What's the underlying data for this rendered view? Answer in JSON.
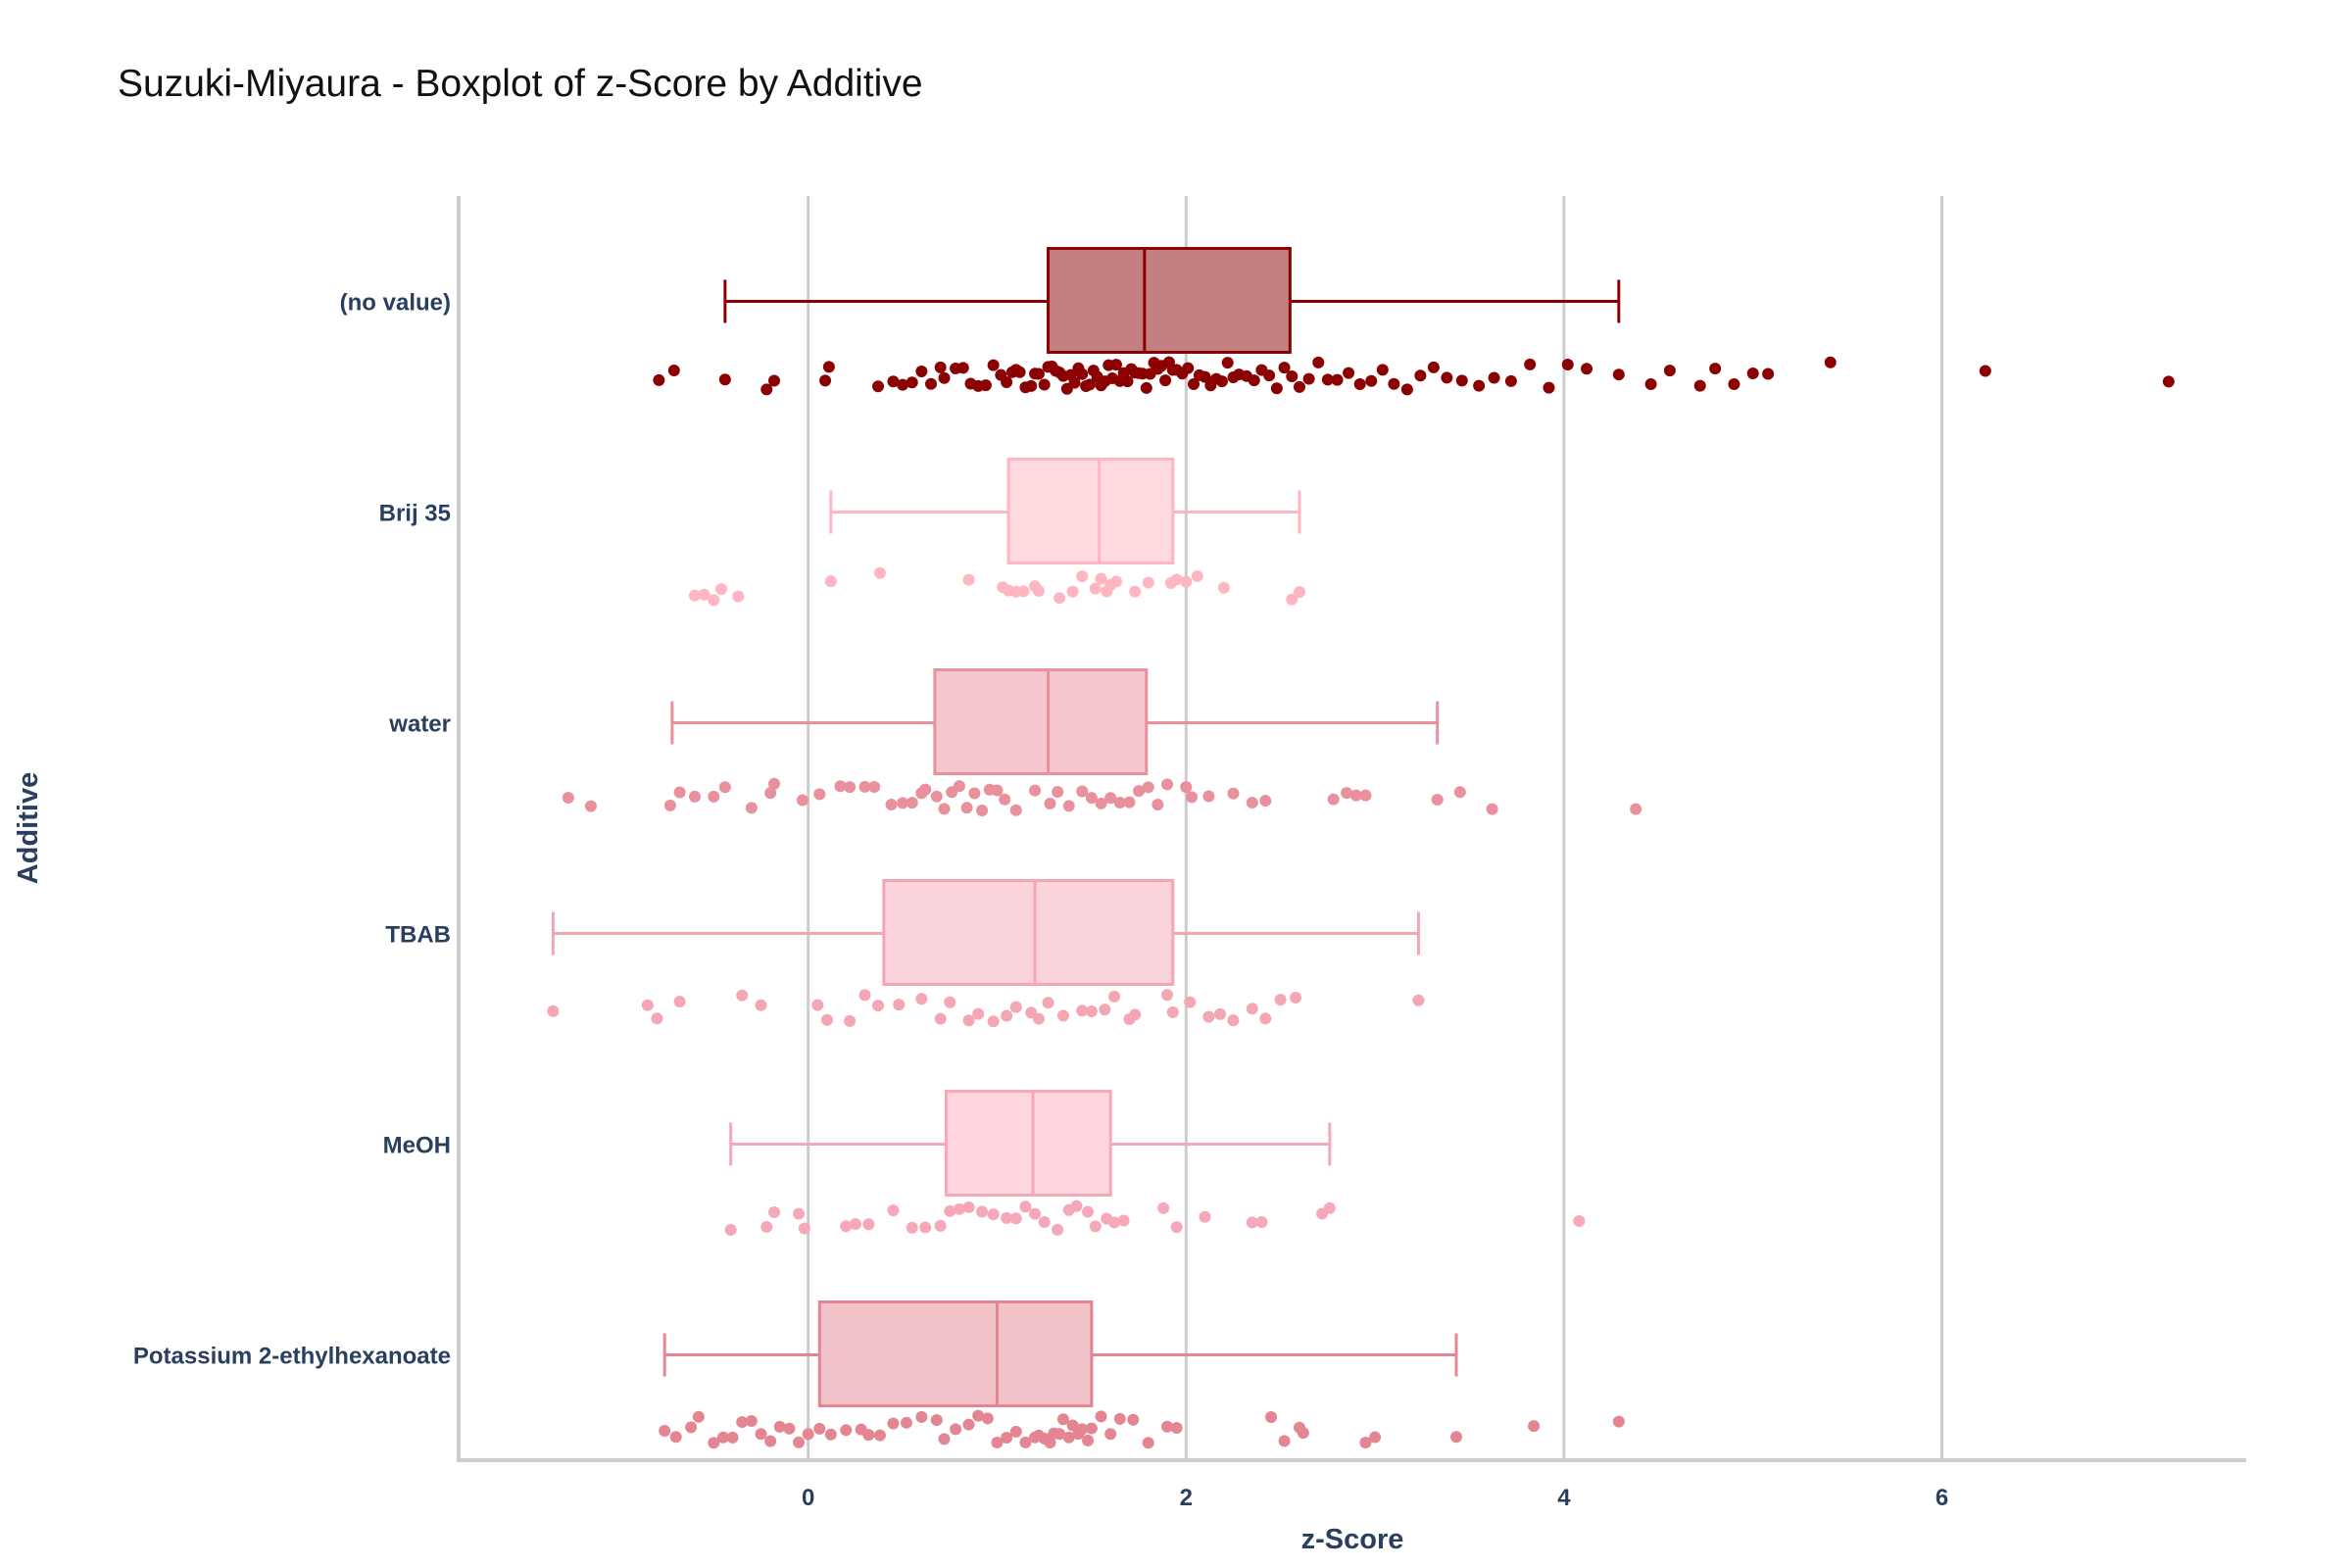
{
  "chart_data": {
    "type": "box",
    "orientation": "horizontal",
    "title": "Suzuki-Miyaura - Boxplot of z-Score by Additive",
    "xlabel": "z-Score",
    "ylabel": "Additive",
    "xlim": [
      -1.85,
      7.6
    ],
    "xticks": [
      0,
      2,
      4,
      6
    ],
    "grid": true,
    "legend": "none",
    "categories": [
      "(no value)",
      "Brij 35",
      "water",
      "TBAB",
      "MeOH",
      "Potassium 2-ethylhexanoate"
    ],
    "series": [
      {
        "category": "(no value)",
        "color": "#8b0000",
        "fill": "#c48080",
        "stats": {
          "lower_fence": -0.44,
          "q1": 1.27,
          "median": 1.78,
          "q3": 2.55,
          "upper_fence": 4.29
        },
        "points": [
          -0.79,
          -0.71,
          -0.44,
          -0.22,
          -0.18,
          0.09,
          0.11,
          0.37,
          0.45,
          0.5,
          0.55,
          0.6,
          0.65,
          0.7,
          0.72,
          0.78,
          0.82,
          0.86,
          0.9,
          0.94,
          0.98,
          1.02,
          1.05,
          1.08,
          1.1,
          1.12,
          1.15,
          1.18,
          1.2,
          1.22,
          1.25,
          1.27,
          1.29,
          1.31,
          1.33,
          1.35,
          1.37,
          1.39,
          1.41,
          1.43,
          1.45,
          1.47,
          1.49,
          1.51,
          1.53,
          1.55,
          1.57,
          1.59,
          1.61,
          1.63,
          1.65,
          1.67,
          1.69,
          1.71,
          1.73,
          1.75,
          1.77,
          1.79,
          1.81,
          1.83,
          1.85,
          1.87,
          1.89,
          1.91,
          1.93,
          1.95,
          1.98,
          2.01,
          2.04,
          2.07,
          2.1,
          2.13,
          2.16,
          2.19,
          2.22,
          2.25,
          2.28,
          2.32,
          2.36,
          2.4,
          2.44,
          2.48,
          2.52,
          2.56,
          2.6,
          2.65,
          2.7,
          2.75,
          2.8,
          2.86,
          2.92,
          2.98,
          3.04,
          3.1,
          3.17,
          3.24,
          3.31,
          3.38,
          3.46,
          3.55,
          3.63,
          3.72,
          3.82,
          3.92,
          4.02,
          4.12,
          4.29,
          4.46,
          4.56,
          4.72,
          4.8,
          4.9,
          5.0,
          5.08,
          5.41,
          6.23,
          7.2
        ]
      },
      {
        "category": "Brij 35",
        "color": "#ffb6c1",
        "fill": "#ffdbe0",
        "stats": {
          "lower_fence": 0.12,
          "q1": 1.06,
          "median": 1.54,
          "q3": 1.93,
          "upper_fence": 2.6
        },
        "points": [
          -0.6,
          -0.55,
          -0.5,
          -0.46,
          -0.37,
          0.12,
          0.38,
          0.85,
          1.03,
          1.06,
          1.1,
          1.14,
          1.2,
          1.22,
          1.33,
          1.4,
          1.45,
          1.52,
          1.55,
          1.58,
          1.6,
          1.63,
          1.73,
          1.8,
          1.92,
          1.95,
          2.0,
          2.06,
          2.2,
          2.56,
          2.6
        ]
      },
      {
        "category": "water",
        "color": "#e8909c",
        "fill": "#f3c7cd",
        "stats": {
          "lower_fence": -0.72,
          "q1": 0.67,
          "median": 1.27,
          "q3": 1.79,
          "upper_fence": 3.33
        },
        "points": [
          -1.27,
          -1.15,
          -0.73,
          -0.68,
          -0.6,
          -0.5,
          -0.44,
          -0.3,
          -0.2,
          -0.18,
          -0.03,
          0.06,
          0.17,
          0.22,
          0.3,
          0.35,
          0.44,
          0.5,
          0.55,
          0.6,
          0.62,
          0.68,
          0.72,
          0.76,
          0.8,
          0.84,
          0.88,
          0.92,
          0.96,
          1.0,
          1.04,
          1.1,
          1.2,
          1.28,
          1.32,
          1.38,
          1.45,
          1.5,
          1.55,
          1.6,
          1.65,
          1.7,
          1.75,
          1.8,
          1.85,
          1.9,
          2.0,
          2.03,
          2.12,
          2.25,
          2.35,
          2.42,
          2.78,
          2.85,
          2.9,
          2.95,
          3.33,
          3.45,
          3.62,
          4.38
        ]
      },
      {
        "category": "TBAB",
        "color": "#f4a6b2",
        "fill": "#fad4da",
        "stats": {
          "lower_fence": -1.35,
          "q1": 0.4,
          "median": 1.2,
          "q3": 1.93,
          "upper_fence": 3.23
        },
        "points": [
          -1.35,
          -0.85,
          -0.8,
          -0.68,
          -0.35,
          -0.25,
          0.05,
          0.1,
          0.22,
          0.3,
          0.37,
          0.48,
          0.6,
          0.7,
          0.75,
          0.85,
          0.9,
          0.98,
          1.05,
          1.1,
          1.18,
          1.22,
          1.27,
          1.35,
          1.45,
          1.5,
          1.57,
          1.62,
          1.7,
          1.73,
          1.9,
          1.93,
          2.02,
          2.12,
          2.18,
          2.25,
          2.35,
          2.42,
          2.5,
          2.58,
          3.23
        ]
      },
      {
        "category": "MeOH",
        "color": "#f7a8b8",
        "fill": "#ffd6dd",
        "stats": {
          "lower_fence": -0.41,
          "q1": 0.73,
          "median": 1.19,
          "q3": 1.6,
          "upper_fence": 2.76
        },
        "points": [
          -0.41,
          -0.22,
          -0.18,
          -0.05,
          -0.02,
          0.2,
          0.25,
          0.32,
          0.45,
          0.55,
          0.62,
          0.7,
          0.75,
          0.8,
          0.85,
          0.92,
          0.98,
          1.05,
          1.1,
          1.15,
          1.2,
          1.25,
          1.32,
          1.38,
          1.42,
          1.48,
          1.52,
          1.58,
          1.62,
          1.67,
          1.88,
          1.95,
          2.1,
          2.35,
          2.4,
          2.72,
          2.76,
          4.08
        ]
      },
      {
        "category": "Potassium 2-ethylhexanoate",
        "color": "#e38692",
        "fill": "#f1c2c8",
        "stats": {
          "lower_fence": -0.76,
          "q1": 0.06,
          "median": 1.0,
          "q3": 1.5,
          "upper_fence": 3.43
        },
        "points": [
          -0.76,
          -0.7,
          -0.62,
          -0.58,
          -0.5,
          -0.45,
          -0.4,
          -0.35,
          -0.3,
          -0.25,
          -0.2,
          -0.15,
          -0.1,
          -0.05,
          0.0,
          0.06,
          0.12,
          0.2,
          0.28,
          0.32,
          0.38,
          0.45,
          0.52,
          0.6,
          0.68,
          0.72,
          0.78,
          0.85,
          0.9,
          0.95,
          1.0,
          1.05,
          1.1,
          1.15,
          1.2,
          1.22,
          1.25,
          1.28,
          1.3,
          1.33,
          1.35,
          1.38,
          1.4,
          1.43,
          1.45,
          1.48,
          1.5,
          1.55,
          1.6,
          1.65,
          1.72,
          1.8,
          1.9,
          1.95,
          2.45,
          2.52,
          2.6,
          2.62,
          2.95,
          3.0,
          3.43,
          3.84,
          4.29
        ]
      }
    ]
  }
}
